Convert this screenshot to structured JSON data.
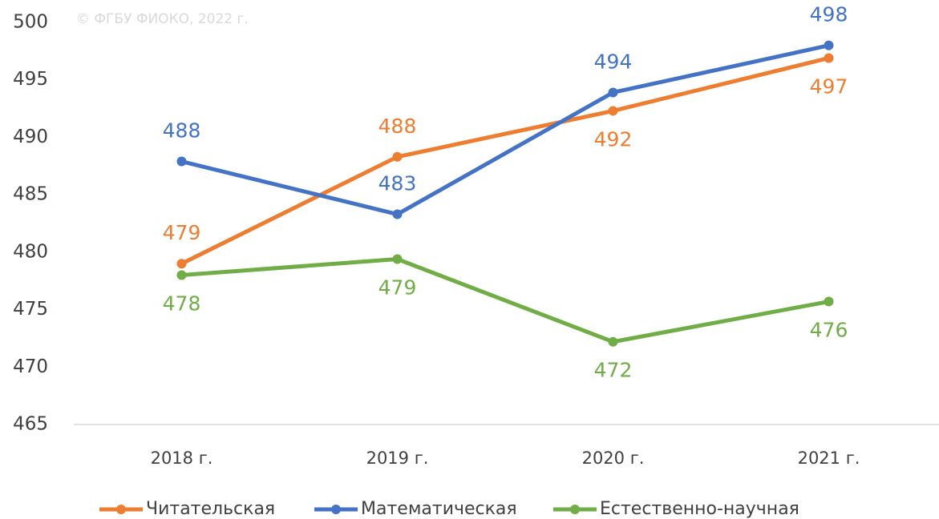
{
  "chart_data": {
    "type": "line",
    "watermark": "© ФГБУ ФИОКО, 2022 г.",
    "categories": [
      "2018 г.",
      "2019 г.",
      "2020 г.",
      "2021 г."
    ],
    "series": [
      {
        "name": "Читательская",
        "color": "#ed7d31",
        "values": [
          479,
          488.3,
          492.3,
          496.9
        ],
        "value_labels": [
          "479",
          "488",
          "492",
          "497"
        ]
      },
      {
        "name": "Математическая",
        "color": "#4472c4",
        "values": [
          487.9,
          483.3,
          493.9,
          498
        ],
        "value_labels": [
          "488",
          "483",
          "494",
          "498"
        ]
      },
      {
        "name": "Естественно-научная",
        "color": "#70ad47",
        "values": [
          478,
          479.4,
          472.2,
          475.7
        ],
        "value_labels": [
          "478",
          "479",
          "472",
          "476"
        ]
      }
    ],
    "ylim": [
      465,
      500
    ],
    "yticks": [
      465,
      470,
      475,
      480,
      485,
      490,
      495,
      500
    ],
    "grid": false
  }
}
